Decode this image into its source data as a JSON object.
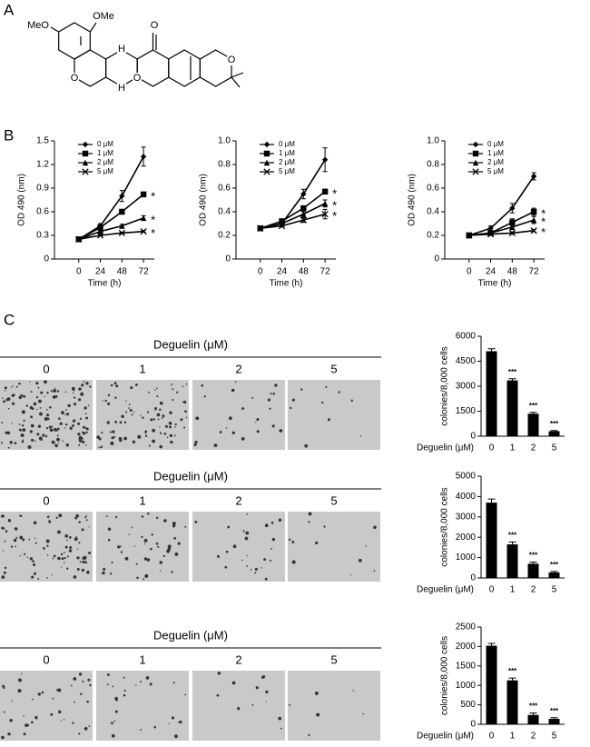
{
  "panel_labels": [
    "A",
    "B",
    "C"
  ],
  "structure": {
    "labels": [
      "OMe",
      "MeO",
      "O",
      "H",
      "H",
      "O",
      "O",
      "O"
    ]
  },
  "image_rows": [
    {
      "header": "Deguelin (μM)",
      "labels": [
        "0",
        "1",
        "2",
        "5"
      ]
    },
    {
      "header": "Deguelin (μM)",
      "labels": [
        "0",
        "1",
        "2",
        "5"
      ]
    },
    {
      "header": "Deguelin (μM)",
      "labels": [
        "0",
        "1",
        "2",
        "5"
      ]
    }
  ],
  "chart_data": [
    {
      "type": "line",
      "x": [
        0,
        24,
        48,
        72
      ],
      "xlim": [
        -27,
        84
      ],
      "xticks": [
        0,
        24,
        48,
        72
      ],
      "ylim": [
        0,
        1.5
      ],
      "yticks": [
        0,
        0.3,
        0.6,
        0.9,
        1.2,
        1.5
      ],
      "y_label": "OD 490 (nm)",
      "x_label": "Time (h)",
      "legend_position": "upper left",
      "series": [
        {
          "name": "0 μM",
          "color": "#000000",
          "marker": "diamond",
          "values": [
            0.25,
            0.42,
            0.8,
            1.3
          ],
          "errors": [
            0.01,
            0.03,
            0.07,
            0.12
          ]
        },
        {
          "name": "1 μM",
          "color": "#000000",
          "marker": "square",
          "values": [
            0.25,
            0.4,
            0.6,
            0.82
          ],
          "errors": [
            0.01,
            0.02,
            0.03,
            0.03
          ],
          "annotation": "*"
        },
        {
          "name": "2 μM",
          "color": "#000000",
          "marker": "triangle",
          "values": [
            0.25,
            0.35,
            0.42,
            0.52
          ],
          "errors": [
            0.01,
            0.01,
            0.02,
            0.03
          ],
          "annotation": "*"
        },
        {
          "name": "5 μM",
          "color": "#000000",
          "marker": "cross",
          "values": [
            0.25,
            0.3,
            0.33,
            0.35
          ],
          "errors": [
            0.01,
            0.01,
            0.01,
            0.01
          ],
          "annotation": "*"
        }
      ]
    },
    {
      "type": "line",
      "x": [
        0,
        24,
        48,
        72
      ],
      "xlim": [
        -27,
        84
      ],
      "xticks": [
        0,
        24,
        48,
        72
      ],
      "ylim": [
        0,
        1
      ],
      "yticks": [
        0,
        0.2,
        0.4,
        0.6,
        0.8,
        {
          "value": 1,
          "label": "1.0"
        }
      ],
      "y_label": "OD 490 (nm)",
      "x_label": "Time (h)",
      "legend_position": "upper left",
      "series": [
        {
          "name": "0 μM",
          "color": "#000000",
          "marker": "diamond",
          "values": [
            0.26,
            0.3,
            0.55,
            0.84
          ],
          "errors": [
            0.02,
            0.02,
            0.04,
            0.1
          ]
        },
        {
          "name": "1 μM",
          "color": "#000000",
          "marker": "square",
          "values": [
            0.26,
            0.32,
            0.43,
            0.57
          ],
          "errors": [
            0.01,
            0.01,
            0.02,
            0.02
          ],
          "annotation": "*"
        },
        {
          "name": "2 μM",
          "color": "#000000",
          "marker": "triangle",
          "values": [
            0.26,
            0.3,
            0.38,
            0.47
          ],
          "errors": [
            0.01,
            0.01,
            0.02,
            0.03
          ],
          "annotation": "*"
        },
        {
          "name": "5 μM",
          "color": "#000000",
          "marker": "cross",
          "values": [
            0.26,
            0.28,
            0.33,
            0.38
          ],
          "errors": [
            0.01,
            0.01,
            0.02,
            0.04
          ],
          "annotation": "*"
        }
      ]
    },
    {
      "type": "line",
      "x": [
        0,
        24,
        48,
        72
      ],
      "xlim": [
        -27,
        84
      ],
      "xticks": [
        0,
        24,
        48,
        72
      ],
      "ylim": [
        0,
        1
      ],
      "yticks": [
        0,
        0.2,
        0.4,
        0.6,
        0.8,
        {
          "value": 1,
          "label": "1.0"
        }
      ],
      "y_label": "OD 490 (nm)",
      "x_label": "Time (h)",
      "legend_position": "upper left",
      "series": [
        {
          "name": "0 μM",
          "color": "#000000",
          "marker": "diamond",
          "values": [
            0.2,
            0.26,
            0.43,
            0.7
          ],
          "errors": [
            0.02,
            0.02,
            0.04,
            0.03
          ]
        },
        {
          "name": "1 μM",
          "color": "#000000",
          "marker": "square",
          "values": [
            0.2,
            0.22,
            0.31,
            0.4
          ],
          "errors": [
            0.01,
            0.01,
            0.03,
            0.03
          ],
          "annotation": "*"
        },
        {
          "name": "2 μM",
          "color": "#000000",
          "marker": "triangle",
          "values": [
            0.2,
            0.22,
            0.27,
            0.33
          ],
          "errors": [
            0.01,
            0.01,
            0.02,
            0.03
          ],
          "annotation": "*"
        },
        {
          "name": "5 μM",
          "color": "#000000",
          "marker": "cross",
          "values": [
            0.2,
            0.21,
            0.22,
            0.24
          ],
          "errors": [
            0.01,
            0.01,
            0.01,
            0.01
          ],
          "annotation": "*"
        }
      ]
    },
    {
      "type": "bar",
      "categories": [
        "0",
        "1",
        "2",
        "5"
      ],
      "values": [
        5100,
        3350,
        1350,
        300
      ],
      "errors": [
        150,
        100,
        80,
        40
      ],
      "significance": [
        null,
        "***",
        "***",
        "***"
      ],
      "color": "#000000",
      "ylim": [
        0,
        6000
      ],
      "yticks": [
        0,
        1500,
        3000,
        4500,
        6000
      ],
      "y_label": "colonies/8,000 cells",
      "x_label": "Deguelin (μM)"
    },
    {
      "type": "bar",
      "categories": [
        "0",
        "1",
        "2",
        "5"
      ],
      "values": [
        3700,
        1650,
        700,
        270
      ],
      "errors": [
        180,
        120,
        80,
        50
      ],
      "significance": [
        null,
        "***",
        "***",
        "***"
      ],
      "color": "#000000",
      "ylim": [
        0,
        5000
      ],
      "yticks": [
        0,
        1000,
        2000,
        3000,
        4000,
        5000
      ],
      "y_label": "colonies/8,000 cells",
      "x_label": "Deguelin (μM)"
    },
    {
      "type": "bar",
      "categories": [
        "0",
        "1",
        "2",
        "5"
      ],
      "values": [
        2020,
        1130,
        240,
        140
      ],
      "errors": [
        60,
        60,
        50,
        30
      ],
      "significance": [
        null,
        "***",
        "***",
        "***"
      ],
      "color": "#000000",
      "ylim": [
        0,
        2500
      ],
      "yticks": [
        0,
        500,
        1000,
        1500,
        2000,
        2500
      ],
      "y_label": "colonies/8,000 cells",
      "x_label": "Deguelin (μM)"
    }
  ]
}
